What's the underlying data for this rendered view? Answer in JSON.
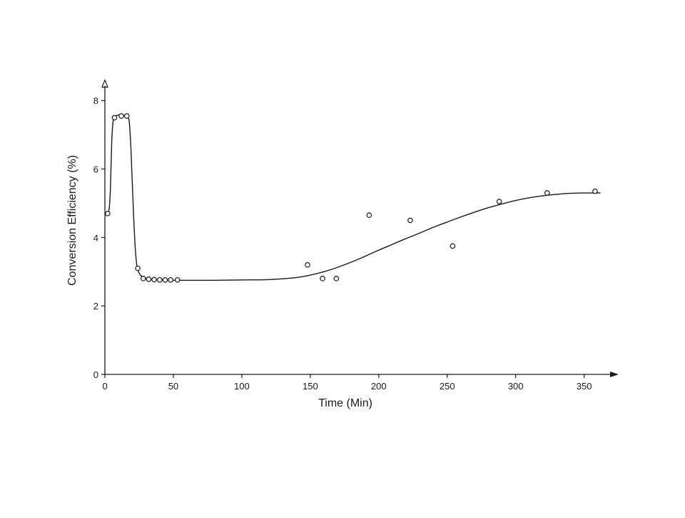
{
  "chart_data": {
    "type": "scatter",
    "title": "",
    "xlabel": "Time (Min)",
    "ylabel": "Conversion Efficiency (%)",
    "xlim": [
      0,
      370
    ],
    "ylim": [
      0,
      8.6
    ],
    "x_ticks": [
      0,
      50,
      100,
      150,
      200,
      250,
      300,
      350
    ],
    "y_ticks": [
      0,
      2,
      4,
      6,
      8
    ],
    "grid": false,
    "legend": "none",
    "series": [
      {
        "style": "points",
        "x": [
          2,
          7,
          12,
          16,
          24,
          28,
          32,
          36,
          40,
          44,
          48,
          53,
          148,
          159,
          169,
          193,
          223,
          254,
          288,
          323,
          358
        ],
        "y": [
          4.7,
          7.5,
          7.55,
          7.55,
          3.1,
          2.8,
          2.78,
          2.77,
          2.76,
          2.76,
          2.76,
          2.76,
          3.2,
          2.8,
          2.8,
          4.65,
          4.5,
          3.75,
          5.05,
          5.3,
          5.35
        ]
      },
      {
        "style": "line",
        "x": [
          1,
          3,
          4,
          5,
          6,
          7,
          9,
          12,
          15,
          17,
          18,
          19,
          20,
          21,
          22,
          23,
          24,
          26,
          28,
          32,
          40,
          50,
          60,
          80,
          100,
          120,
          140,
          150,
          160,
          170,
          180,
          190,
          200,
          210,
          220,
          230,
          240,
          250,
          260,
          270,
          280,
          290,
          300,
          310,
          320,
          330,
          340,
          350,
          362
        ],
        "y": [
          4.7,
          4.8,
          5.4,
          6.8,
          7.4,
          7.52,
          7.57,
          7.58,
          7.56,
          7.5,
          7.3,
          6.6,
          5.6,
          4.6,
          3.8,
          3.3,
          3.05,
          2.9,
          2.83,
          2.79,
          2.76,
          2.75,
          2.75,
          2.75,
          2.76,
          2.77,
          2.83,
          2.9,
          3.0,
          3.13,
          3.28,
          3.45,
          3.63,
          3.8,
          3.97,
          4.13,
          4.3,
          4.45,
          4.6,
          4.74,
          4.87,
          4.98,
          5.08,
          5.16,
          5.22,
          5.26,
          5.29,
          5.3,
          5.3
        ]
      }
    ]
  }
}
